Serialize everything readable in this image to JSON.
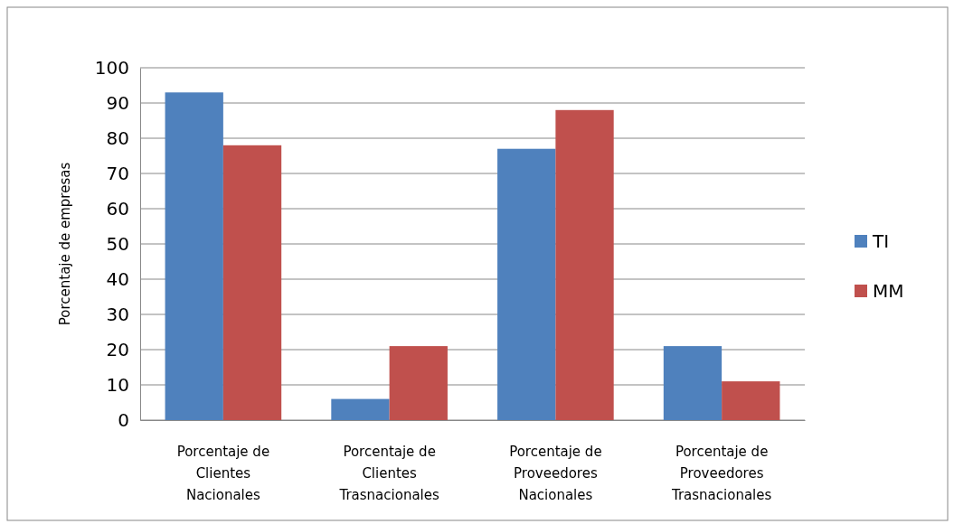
{
  "chart_data": {
    "type": "bar",
    "ylabel": "Porcentaje de empresas",
    "categories": [
      "Porcentaje de Clientes Nacionales",
      "Porcentaje de Clientes Trasnacionales",
      "Porcentaje de Proveedores Nacionales",
      "Porcentaje de Proveedores Trasnacionales"
    ],
    "series": [
      {
        "name": "TI",
        "color": "#4f81bd",
        "values": [
          93,
          6,
          77,
          21
        ]
      },
      {
        "name": "MM",
        "color": "#c0504d",
        "values": [
          78,
          21,
          88,
          11
        ]
      }
    ],
    "ylim": [
      0,
      100
    ],
    "yticks": [
      0,
      10,
      20,
      30,
      40,
      50,
      60,
      70,
      80,
      90,
      100
    ],
    "grid": "y",
    "legend": "right"
  }
}
